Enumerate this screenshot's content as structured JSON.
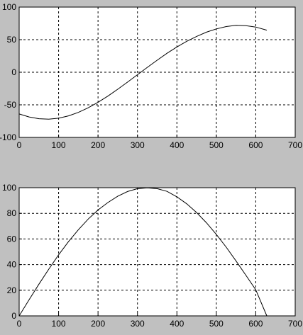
{
  "figure": {
    "background": "#c0c0c0",
    "axes_background": "#ffffff",
    "line_color": "#000000"
  },
  "chart_data": [
    {
      "type": "line",
      "title": "",
      "xlabel": "",
      "ylabel": "",
      "xlim": [
        0,
        700
      ],
      "ylim": [
        -100,
        100
      ],
      "grid": true,
      "xticks": [
        0,
        100,
        200,
        300,
        400,
        500,
        600,
        700
      ],
      "yticks": [
        -100,
        -50,
        0,
        50,
        100
      ],
      "series": [
        {
          "x": [
            0,
            25,
            50,
            75,
            100,
            125,
            150,
            175,
            200,
            225,
            250,
            275,
            300,
            325,
            350,
            375,
            400,
            425,
            450,
            475,
            500,
            525,
            550,
            575,
            600,
            628
          ],
          "y": [
            -64,
            -68.6,
            -71.3,
            -72,
            -70.5,
            -67,
            -61.6,
            -54.6,
            -46.1,
            -36.6,
            -26.1,
            -15.1,
            -3.8,
            7.5,
            18.5,
            29.1,
            38.8,
            47.5,
            55,
            61.5,
            66.5,
            70.1,
            72,
            71.5,
            69.4,
            64.6
          ]
        }
      ]
    },
    {
      "type": "line",
      "title": "",
      "xlabel": "",
      "ylabel": "",
      "xlim": [
        0,
        700
      ],
      "ylim": [
        0,
        100
      ],
      "grid": true,
      "xticks": [
        0,
        100,
        200,
        300,
        400,
        500,
        600,
        700
      ],
      "yticks": [
        0,
        20,
        40,
        60,
        80,
        100
      ],
      "series": [
        {
          "x": [
            0,
            25,
            50,
            75,
            100,
            125,
            150,
            175,
            200,
            225,
            250,
            275,
            300,
            325,
            350,
            375,
            400,
            425,
            450,
            475,
            500,
            525,
            550,
            575,
            600,
            628
          ],
          "y": [
            0,
            12.5,
            24.7,
            36.4,
            47.6,
            57.9,
            67.2,
            75.5,
            82.6,
            88.4,
            93.3,
            97,
            99.2,
            99.9,
            99.2,
            97.1,
            92.9,
            87.4,
            80.6,
            72.6,
            63.5,
            53.6,
            42.9,
            31.7,
            20.4,
            0
          ]
        }
      ]
    }
  ]
}
